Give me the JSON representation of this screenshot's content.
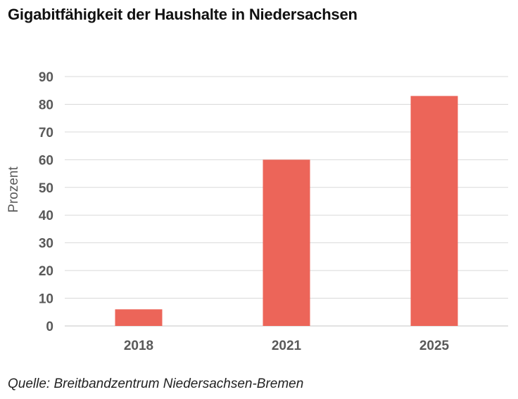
{
  "chart_data": {
    "type": "bar",
    "title": "Gigabitfähigkeit der Haushalte in Niedersachsen",
    "xlabel": "",
    "ylabel": "Prozent",
    "categories": [
      "2018",
      "2021",
      "2025"
    ],
    "values": [
      6,
      60,
      83
    ],
    "ylim": [
      0,
      90
    ],
    "yticks": [
      0,
      10,
      20,
      30,
      40,
      50,
      60,
      70,
      80,
      90
    ],
    "grid": true,
    "legend": "none",
    "bar_color": "#ec6559",
    "gridline_color": "#d9d9d9",
    "tick_label_color": "#595959"
  },
  "source": "Quelle: Breitbandzentrum Niedersachsen-Bremen"
}
